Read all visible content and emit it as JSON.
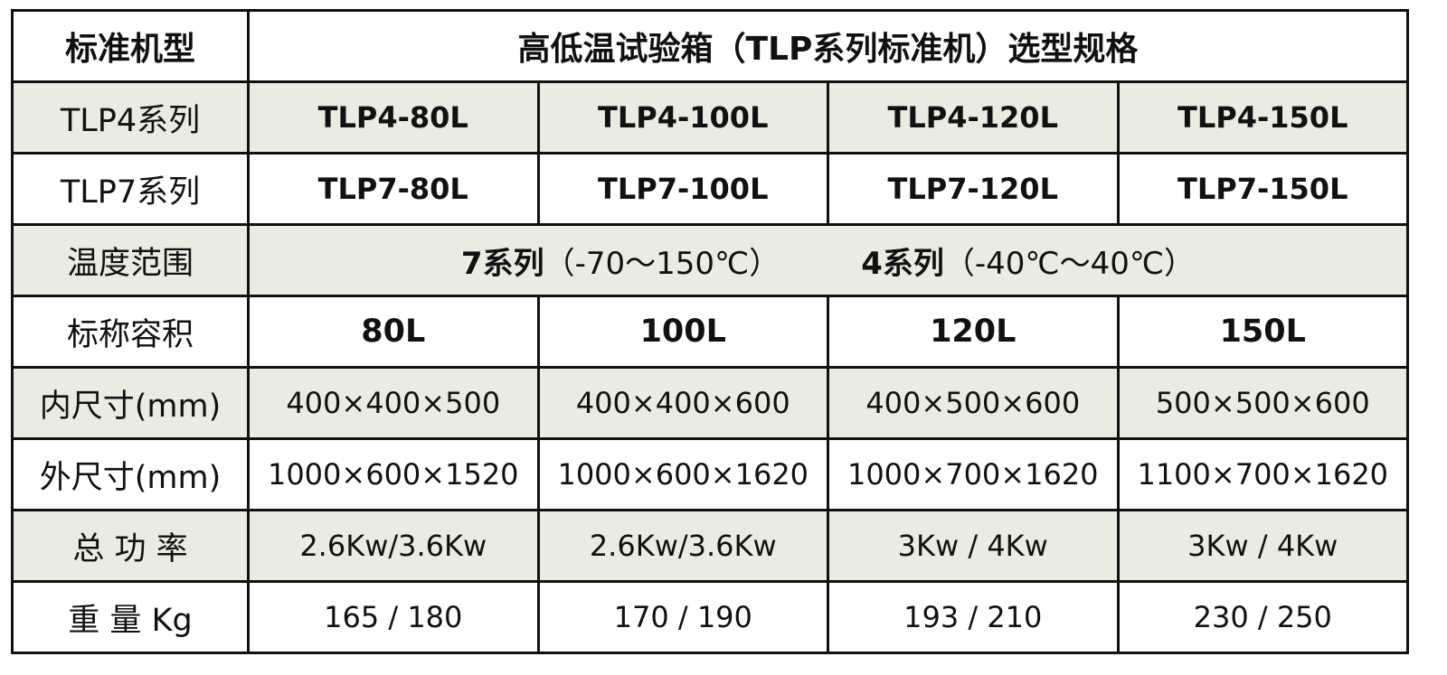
{
  "table": {
    "header": [
      "标准机型",
      "高低温试验箱（TLP系列标准机）选型规格"
    ],
    "rows": [
      {
        "label": "TLP4系列",
        "cells": [
          "TLP4-80L",
          "TLP4-100L",
          "TLP4-120L",
          "TLP4-150L"
        ]
      },
      {
        "label": "TLP7系列",
        "cells": [
          "TLP7-80L",
          "TLP7-100L",
          "TLP7-120L",
          "TLP7-150L"
        ]
      },
      {
        "label": "温度范围",
        "ranges": [
          {
            "series": "7系列",
            "range": "（-70～150℃）"
          },
          {
            "series": "4系列",
            "range": "（-40℃～40℃）"
          }
        ]
      },
      {
        "label": "标称容积",
        "cells": [
          "80L",
          "100L",
          "120L",
          "150L"
        ]
      },
      {
        "label": "内尺寸(mm)",
        "cells": [
          "400×400×500",
          "400×400×600",
          "400×500×600",
          "500×500×600"
        ]
      },
      {
        "label": "外尺寸(mm)",
        "cells": [
          "1000×600×1520",
          "1000×600×1620",
          "1000×700×1620",
          "1100×700×1620"
        ]
      },
      {
        "label": "总 功 率",
        "cells": [
          "2.6Kw/3.6Kw",
          "2.6Kw/3.6Kw",
          "3Kw / 4Kw",
          "3Kw / 4Kw"
        ]
      },
      {
        "label": "重 量 Kg",
        "cells": [
          "165 / 180",
          "170 / 190",
          "193 / 210",
          "230 / 250"
        ]
      }
    ]
  }
}
